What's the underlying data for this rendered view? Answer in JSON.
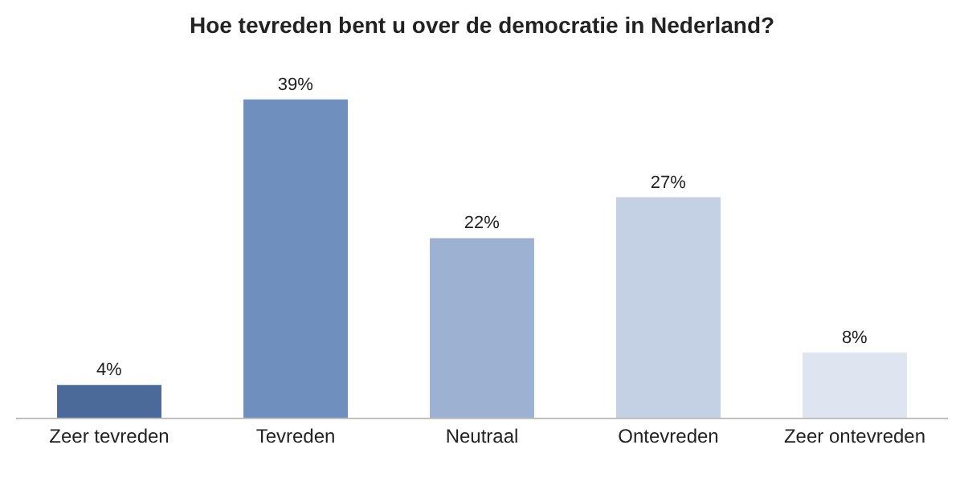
{
  "chart_data": {
    "type": "bar",
    "title": "Hoe tevreden bent u over de democratie in Nederland?",
    "categories": [
      "Zeer tevreden",
      "Tevreden",
      "Neutraal",
      "Ontevreden",
      "Zeer ontevreden"
    ],
    "values": [
      4,
      39,
      22,
      27,
      8
    ],
    "colors": [
      "#4b6999",
      "#6f8fbe",
      "#9db1d3",
      "#c4d0e4",
      "#dfe5f0"
    ],
    "value_labels": [
      "4%",
      "39%",
      "22%",
      "27%",
      "8%"
    ]
  }
}
